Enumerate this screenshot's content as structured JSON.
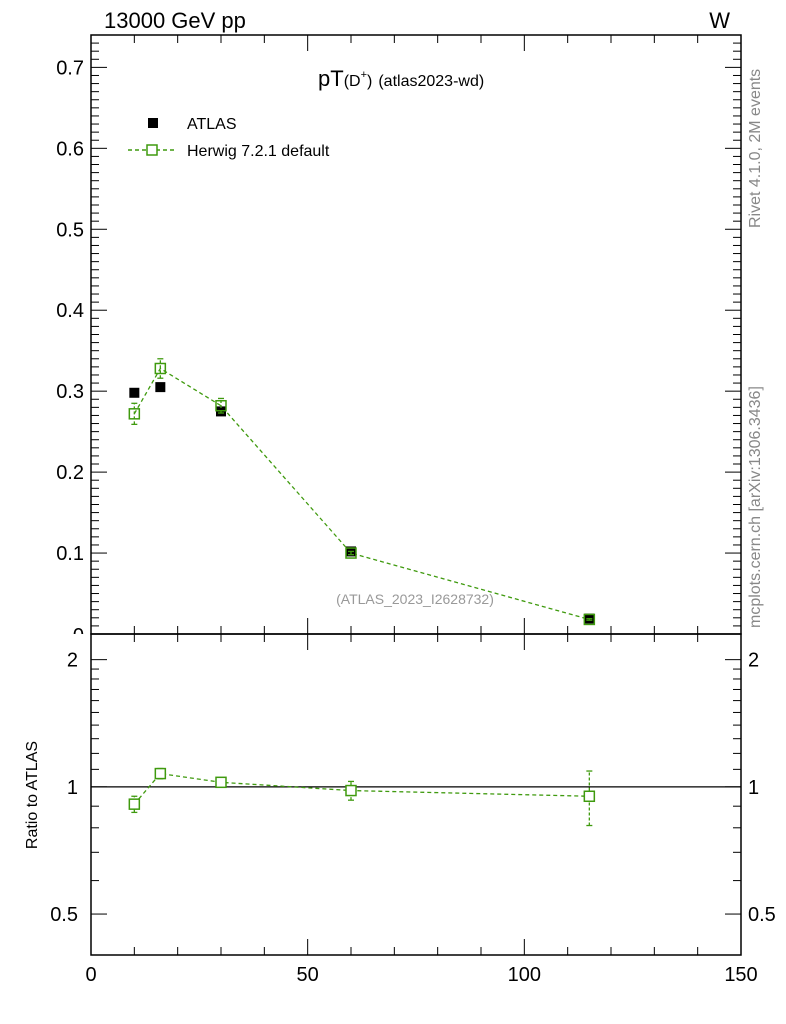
{
  "header": {
    "beam": "13000 GeV pp",
    "process": "W"
  },
  "side_text": {
    "rivet": "Rivet 4.1.0,  2M events",
    "mcplots": "mcplots.cern.ch [arXiv:1306.3436]"
  },
  "colors": {
    "data": "#000000",
    "mc": "#3f9a0e",
    "watermark": "#999999"
  },
  "chart_data": [
    {
      "type": "scatter",
      "title": {
        "main": "pT",
        "sub_open": "(D",
        "sup": "+",
        "sub_close": ")",
        "tag": "(atlas2023-wd)"
      },
      "watermark": "(ATLAS_2023_I2628732)",
      "xlim": [
        0,
        150
      ],
      "ylim": [
        0,
        0.74
      ],
      "yticks": [
        0.1,
        0.2,
        0.3,
        0.4,
        0.5,
        0.6,
        0.7
      ],
      "yticklabels": [
        "0.1",
        "0.2",
        "0.3",
        "0.4",
        "0.5",
        "0.6",
        "0.7"
      ],
      "y_bottom_label": "0",
      "legend": {
        "position": "top-left",
        "entries": [
          "ATLAS",
          "Herwig 7.2.1 default"
        ]
      },
      "series": [
        {
          "name": "ATLAS",
          "marker": "filled-square",
          "x": [
            10,
            16,
            30,
            60,
            115
          ],
          "y": [
            0.298,
            0.305,
            0.275,
            0.102,
            0.019
          ],
          "yerr": [
            0.004,
            0.004,
            0.004,
            0.003,
            0.002
          ]
        },
        {
          "name": "Herwig 7.2.1 default",
          "marker": "open-square",
          "line": "dashed",
          "x": [
            10,
            16,
            30,
            60,
            115
          ],
          "y": [
            0.272,
            0.328,
            0.282,
            0.1,
            0.018
          ],
          "yerr": [
            0.013,
            0.012,
            0.009,
            0.002,
            0.001
          ]
        }
      ]
    },
    {
      "type": "scatter",
      "ylabel": "Ratio to ATLAS",
      "xlim": [
        0,
        150
      ],
      "ylim": [
        0.4,
        2.3
      ],
      "ylog": true,
      "reference": 1.0,
      "xticks": [
        0,
        50,
        100,
        150
      ],
      "xticklabels": [
        "0",
        "50",
        "100",
        "150"
      ],
      "yticks": [
        0.5,
        1,
        2
      ],
      "yticklabels": [
        "0.5",
        "1",
        "2"
      ],
      "series": [
        {
          "name": "Herwig 7.2.1 default / ATLAS",
          "marker": "open-square",
          "line": "dashed",
          "x": [
            10,
            16,
            30,
            60,
            115
          ],
          "y": [
            0.91,
            1.075,
            1.025,
            0.98,
            0.95
          ],
          "yerr": [
            0.04,
            0.03,
            0.02,
            0.05,
            0.14
          ]
        }
      ]
    }
  ]
}
